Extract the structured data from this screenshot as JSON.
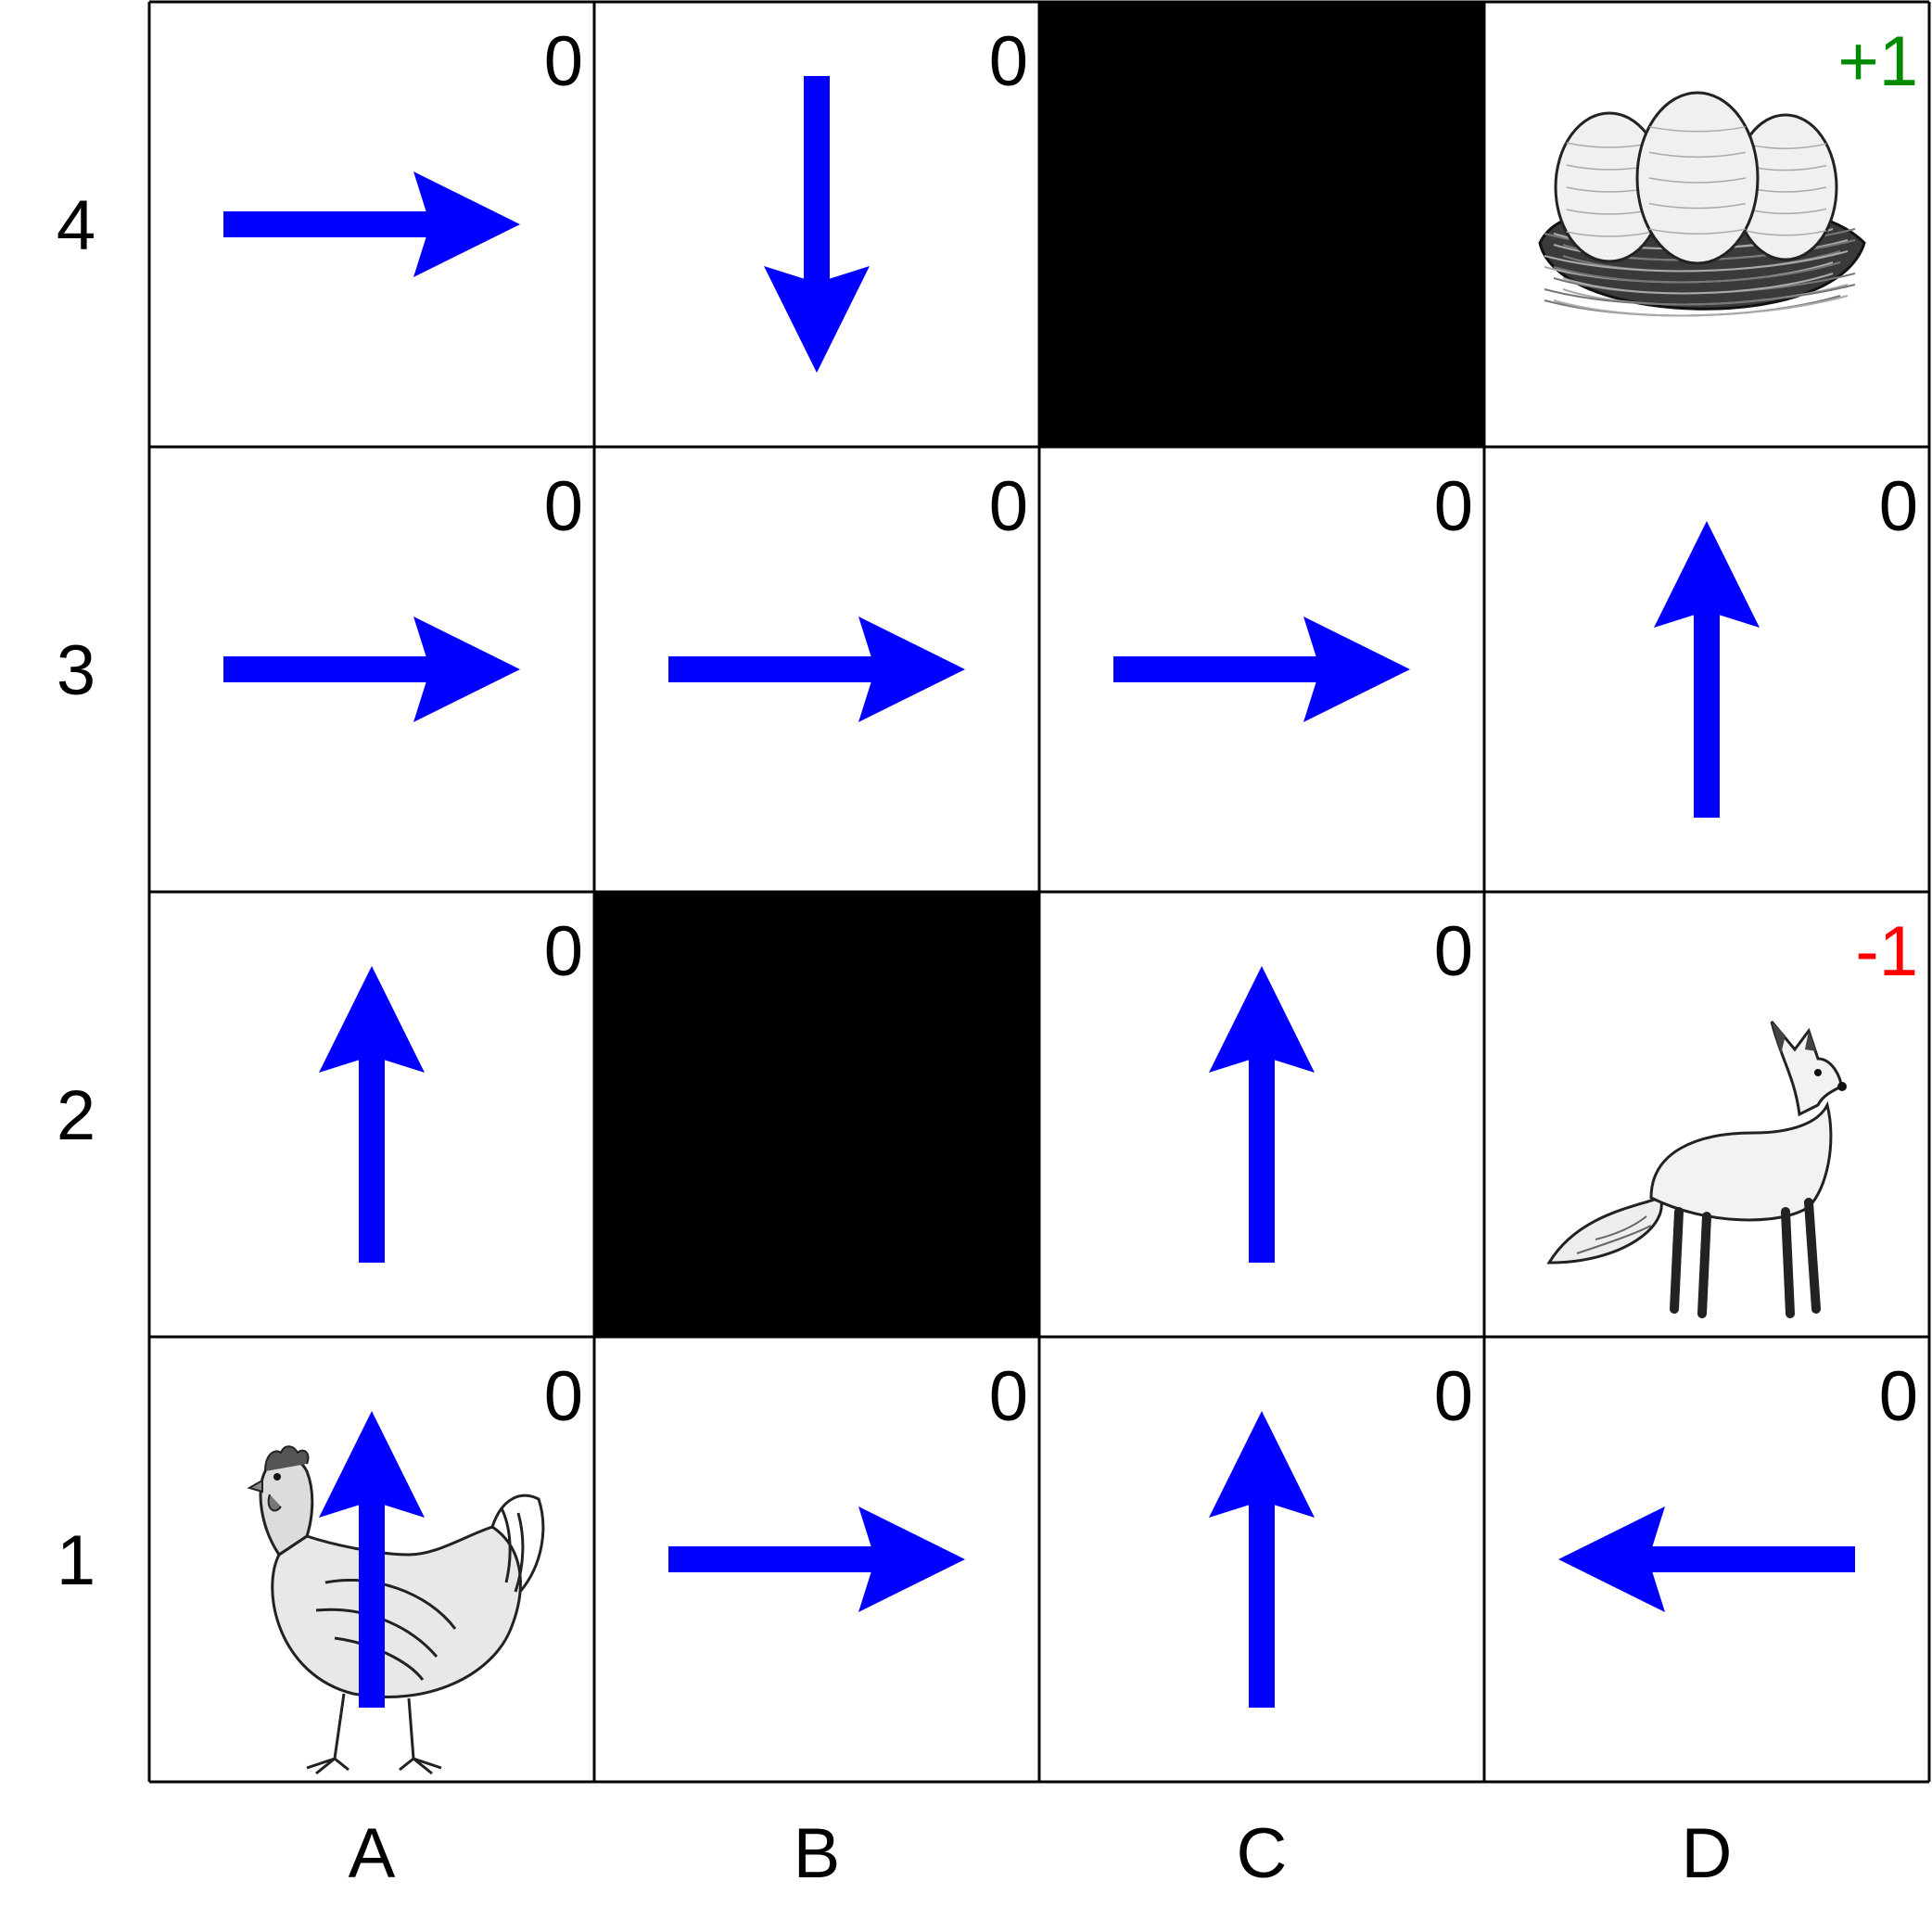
{
  "rows": [
    "4",
    "3",
    "2",
    "1"
  ],
  "cols": [
    "A",
    "B",
    "C",
    "D"
  ],
  "walls": [
    "C4",
    "B2"
  ],
  "rewards": {
    "A4": "0",
    "B4": "0",
    "D4": "+1",
    "A3": "0",
    "B3": "0",
    "C3": "0",
    "D3": "0",
    "A2": "0",
    "C2": "0",
    "D2": "-1",
    "A1": "0",
    "B1": "0",
    "C1": "0",
    "D1": "0"
  },
  "policy": {
    "A4": "right",
    "B4": "down",
    "A3": "right",
    "B3": "right",
    "C3": "right",
    "D3": "up",
    "A2": "up",
    "C2": "up",
    "A1": "up",
    "B1": "right",
    "C1": "up",
    "D1": "left"
  },
  "pictures": {
    "A1": "hen",
    "D2": "fox",
    "D4": "nest-with-eggs"
  },
  "colors": {
    "arrow": "#0000ff",
    "wall": "#000000",
    "positive_reward": "#008a00",
    "negative_reward": "#ff0000",
    "neutral_reward": "#000000",
    "grid_line": "#000000"
  }
}
